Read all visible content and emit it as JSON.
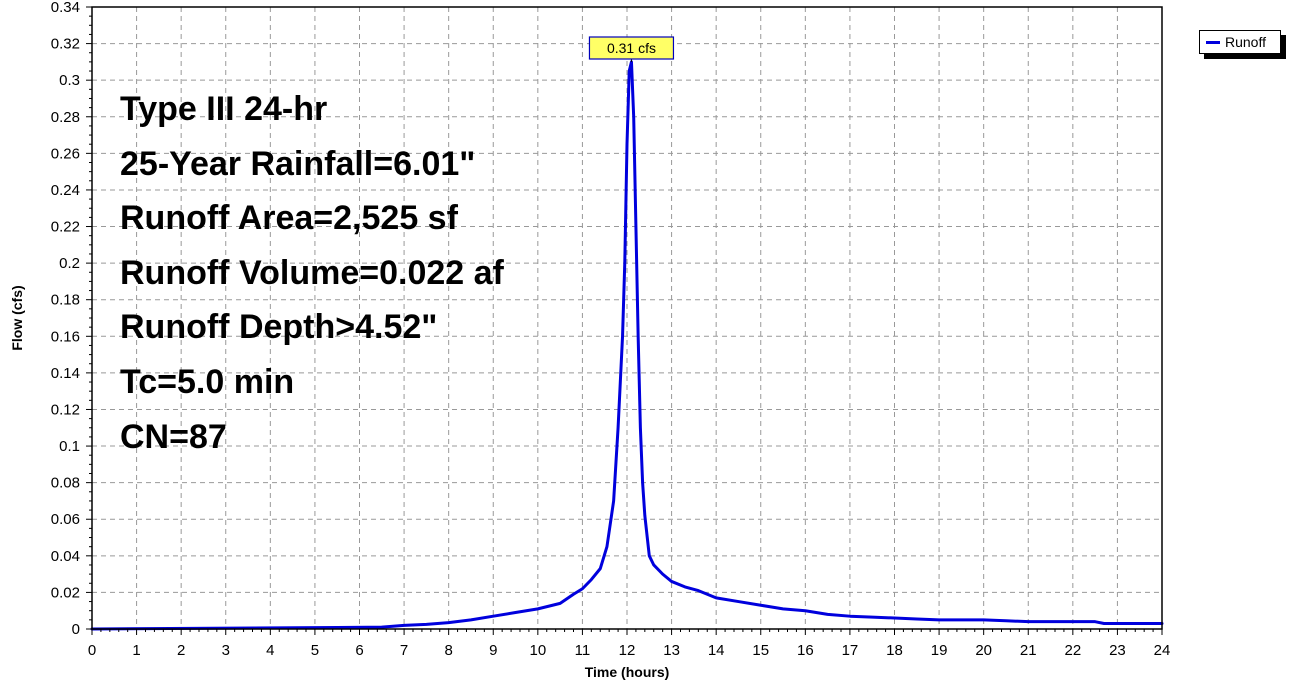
{
  "summary_lines": [
    "Type III 24-hr",
    "25-Year Rainfall=6.01\"",
    "Runoff Area=2,525 sf",
    "Runoff Volume=0.022 af",
    "Runoff Depth>4.52\"",
    "Tc=5.0 min",
    "CN=87"
  ],
  "colors": {
    "series": "#0000dd",
    "grid": "#999999",
    "axis": "#000000",
    "callout_fill": "#ffff66",
    "callout_border": "#0000bb"
  },
  "chart_data": {
    "type": "line",
    "xlabel": "Time  (hours)",
    "ylabel": "Flow  (cfs)",
    "xlim": [
      0,
      24
    ],
    "ylim": [
      0,
      0.34
    ],
    "x_ticks": [
      0,
      1,
      2,
      3,
      4,
      5,
      6,
      7,
      8,
      9,
      10,
      11,
      12,
      13,
      14,
      15,
      16,
      17,
      18,
      19,
      20,
      21,
      22,
      23,
      24
    ],
    "y_ticks": [
      0,
      0.02,
      0.04,
      0.06,
      0.08,
      0.1,
      0.12,
      0.14,
      0.16,
      0.18,
      0.2,
      0.22,
      0.24,
      0.26,
      0.28,
      0.3,
      0.32,
      0.34
    ],
    "grid": true,
    "legend": {
      "position": "top-right",
      "entries": [
        "Runoff"
      ]
    },
    "peak_annotation": {
      "x": 12.1,
      "y": 0.31,
      "text": "0.31 cfs"
    },
    "series": [
      {
        "name": "Runoff",
        "x": [
          0,
          5.5,
          6.5,
          7.0,
          7.5,
          8.0,
          8.5,
          9.0,
          9.5,
          10.0,
          10.5,
          10.8,
          11.0,
          11.2,
          11.4,
          11.55,
          11.7,
          11.8,
          11.9,
          11.95,
          12.0,
          12.05,
          12.1,
          12.15,
          12.2,
          12.25,
          12.3,
          12.35,
          12.4,
          12.5,
          12.6,
          12.8,
          13.0,
          13.3,
          13.6,
          14.0,
          14.5,
          15.0,
          15.5,
          16.0,
          16.5,
          17.0,
          17.5,
          18.0,
          18.5,
          19.0,
          19.5,
          20.0,
          20.5,
          21.0,
          21.5,
          22.0,
          22.5,
          22.7,
          23.0,
          23.5,
          24.0
        ],
        "values": [
          0,
          0.0008,
          0.001,
          0.002,
          0.0025,
          0.0035,
          0.005,
          0.007,
          0.009,
          0.011,
          0.014,
          0.019,
          0.022,
          0.027,
          0.033,
          0.045,
          0.07,
          0.11,
          0.16,
          0.2,
          0.265,
          0.305,
          0.31,
          0.28,
          0.22,
          0.16,
          0.11,
          0.08,
          0.062,
          0.04,
          0.035,
          0.03,
          0.026,
          0.023,
          0.021,
          0.017,
          0.015,
          0.013,
          0.011,
          0.01,
          0.008,
          0.007,
          0.0065,
          0.006,
          0.0055,
          0.005,
          0.005,
          0.005,
          0.0045,
          0.004,
          0.004,
          0.004,
          0.004,
          0.003,
          0.003,
          0.003,
          0.003
        ]
      }
    ]
  }
}
